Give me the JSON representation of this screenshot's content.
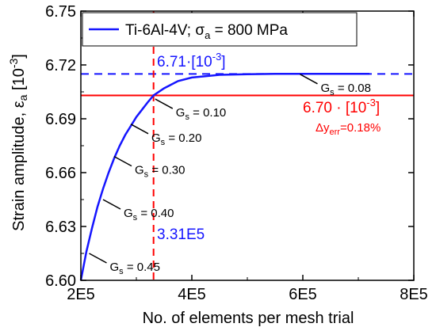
{
  "chart_data": {
    "type": "line",
    "xlabel": "No. of elements per mesh trial",
    "ylabel": {
      "base": "Strain amplitude, ε",
      "sub": "a",
      "unit_pre": " [10",
      "unit_sup": "-3",
      "unit_post": "]"
    },
    "xlim": [
      200000,
      800000
    ],
    "ylim": [
      6.6,
      6.75
    ],
    "x_ticks": [
      200000,
      400000,
      600000,
      800000
    ],
    "x_tick_labels": [
      "2E5",
      "4E5",
      "6E5",
      "8E5"
    ],
    "y_ticks": [
      6.6,
      6.63,
      6.66,
      6.69,
      6.72,
      6.75
    ],
    "y_tick_labels": [
      "6.60",
      "6.63",
      "6.66",
      "6.69",
      "6.72",
      "6.75"
    ],
    "series": [
      {
        "name": "Ti-6Al-4V; σ = 800 MPa",
        "x": [
          200000,
          210000,
          220000,
          230000,
          240000,
          250000,
          260000,
          270000,
          280000,
          290000,
          300000,
          310000,
          320000,
          331000,
          350000,
          375000,
          400000,
          450000,
          500000,
          550000,
          600000,
          650000,
          700000,
          720000
        ],
        "y": [
          6.6,
          6.616,
          6.629,
          6.641,
          6.651,
          6.66,
          6.668,
          6.675,
          6.681,
          6.686,
          6.691,
          6.695,
          6.699,
          6.703,
          6.707,
          6.711,
          6.713,
          6.7145,
          6.7148,
          6.715,
          6.715,
          6.715,
          6.715,
          6.715
        ]
      }
    ],
    "reference_lines": {
      "h_dashed_blue": 6.715,
      "h_solid_red": 6.703,
      "v_dashed_red": 331000
    },
    "annotations": [
      {
        "x": 215000,
        "y": 6.615,
        "g_value": "0.45"
      },
      {
        "x": 240000,
        "y": 6.645,
        "g_value": "0.40"
      },
      {
        "x": 260000,
        "y": 6.669,
        "g_value": "0.30"
      },
      {
        "x": 290000,
        "y": 6.687,
        "g_value": "0.20"
      },
      {
        "x": 334000,
        "y": 6.701,
        "g_value": "0.10"
      },
      {
        "x": 595000,
        "y": 6.7148,
        "g_value": "0.08"
      }
    ],
    "labels": {
      "gs_main": "G",
      "gs_sub": "s",
      "gs_eq": " = ",
      "blue_value_pre": "6.71·[10",
      "blue_value_sup": "-3",
      "blue_value_post": "]",
      "red_value_pre": "6.70 · [10",
      "red_value_sup": "-3",
      "red_value_post": "]",
      "err_pre": "Δy",
      "err_sub": "err",
      "err_post": "=0.18%",
      "vline_label": "3.31E5"
    },
    "legend": {
      "placement": "top-left",
      "pre": "Ti-6Al-4V; σ",
      "sub": "a",
      "post": " = 800 MPa"
    },
    "colors": {
      "curve": "#1515ff",
      "red": "#ff0000",
      "axes": "#000000"
    }
  }
}
